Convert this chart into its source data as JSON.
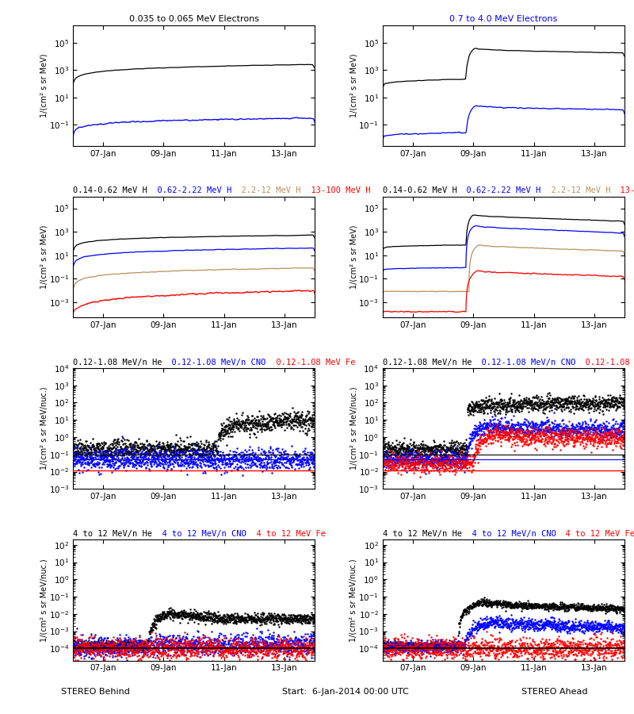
{
  "title_row0_left": "0.035 to 0.065 MeV Electrons",
  "title_row0_right": "0.7 to 4.0 MeV Electrons",
  "title_row1_parts": [
    {
      "text": "0.14-0.62 MeV H",
      "color": "black"
    },
    {
      "text": "  0.62-2.22 MeV H",
      "color": "blue"
    },
    {
      "text": "  2.2-12 MeV H",
      "color": "#b8915a"
    },
    {
      "text": "  13-100 MeV H",
      "color": "red"
    }
  ],
  "title_row2_parts": [
    {
      "text": "0.12-1.08 MeV/n He",
      "color": "black"
    },
    {
      "text": "  0.12-1.08 MeV/n CNO",
      "color": "blue"
    },
    {
      "text": "  0.12-1.08 MeV Fe",
      "color": "red"
    }
  ],
  "title_row3_parts": [
    {
      "text": "4 to 12 MeV/n He",
      "color": "black"
    },
    {
      "text": "  4 to 12 MeV/n CNO",
      "color": "blue"
    },
    {
      "text": "  4 to 12 MeV Fe",
      "color": "red"
    }
  ],
  "ylabel_mev": "1/(cm² s sr MeV)",
  "ylabel_nuc": "1/(cm² s sr MeV/nuc.)",
  "xlabel_left": "STEREO Behind",
  "xlabel_center": "Start:  6-Jan-2014 00:00 UTC",
  "xlabel_right": "STEREO Ahead",
  "xtick_labels": [
    "07-Jan",
    "09-Jan",
    "11-Jan",
    "13-Jan"
  ],
  "days": 8.0,
  "tan_color": "#b8915a"
}
